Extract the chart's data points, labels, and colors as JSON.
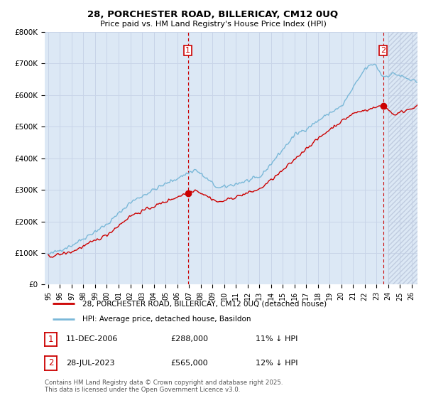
{
  "title_line1": "28, PORCHESTER ROAD, BILLERICAY, CM12 0UQ",
  "title_line2": "Price paid vs. HM Land Registry's House Price Index (HPI)",
  "ylim": [
    0,
    800000
  ],
  "yticks": [
    0,
    100000,
    200000,
    300000,
    400000,
    500000,
    600000,
    700000,
    800000
  ],
  "ytick_labels": [
    "£0",
    "£100K",
    "£200K",
    "£300K",
    "£400K",
    "£500K",
    "£600K",
    "£700K",
    "£800K"
  ],
  "sale1_date": "11-DEC-2006",
  "sale1_price": 288000,
  "sale1_hpi": "11% ↓ HPI",
  "sale1_year": 2006.92,
  "sale2_date": "28-JUL-2023",
  "sale2_price": 565000,
  "sale2_hpi": "12% ↓ HPI",
  "sale2_year": 2023.58,
  "legend_line1": "28, PORCHESTER ROAD, BILLERICAY, CM12 0UQ (detached house)",
  "legend_line2": "HPI: Average price, detached house, Basildon",
  "footnote": "Contains HM Land Registry data © Crown copyright and database right 2025.\nThis data is licensed under the Open Government Licence v3.0.",
  "hpi_color": "#7ab8d8",
  "price_color": "#cc0000",
  "vline_color": "#cc0000",
  "grid_color": "#c8d4e8",
  "plot_bg_color": "#dce8f5",
  "hatch_color": "#c0cce0",
  "xlim_start": 1995,
  "xlim_end": 2026
}
